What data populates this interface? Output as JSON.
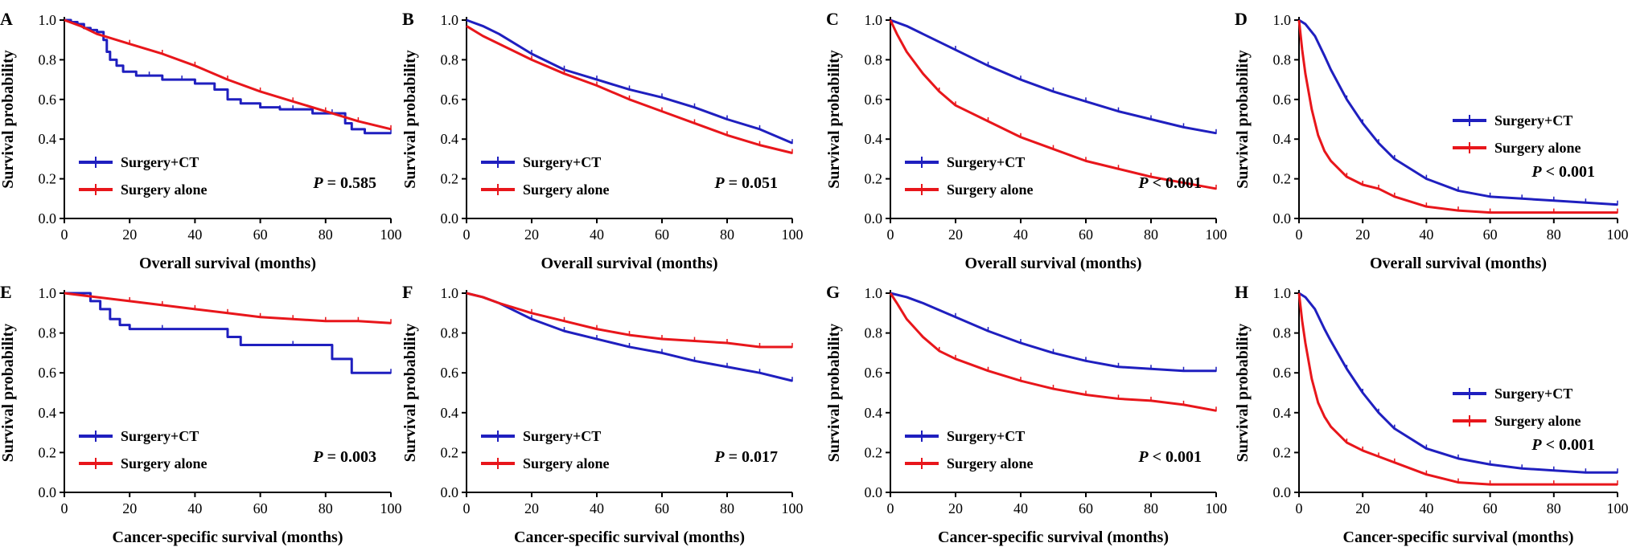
{
  "figure": {
    "y_axis_title": "Survival probability",
    "colors": {
      "surgery_ct": "#1f1fbf",
      "surgery_alone": "#e8161b",
      "axis": "#000000"
    }
  },
  "chart_data": [
    {
      "panel": "A",
      "type": "line",
      "title": "",
      "xlabel": "Overall survival (months)",
      "ylabel": "Survival probability",
      "xlim": [
        0,
        100
      ],
      "ylim": [
        0,
        1.0
      ],
      "xticks": [
        0,
        20,
        40,
        60,
        80,
        100
      ],
      "yticks": [
        0.0,
        0.2,
        0.4,
        0.6,
        0.8,
        1.0
      ],
      "legend": {
        "position": "bottom-left",
        "entries": [
          "Surgery+CT",
          "Surgery alone"
        ]
      },
      "p_value": {
        "prefix": "P",
        "text": " = 0.585",
        "position": "bottom-right"
      },
      "series": [
        {
          "name": "Surgery+CT",
          "step": true,
          "x": [
            0,
            2,
            4,
            6,
            8,
            10,
            12,
            13,
            14,
            16,
            18,
            22,
            26,
            30,
            36,
            40,
            46,
            50,
            54,
            60,
            66,
            70,
            76,
            82,
            86,
            88,
            92,
            100
          ],
          "y": [
            1.0,
            0.99,
            0.98,
            0.96,
            0.95,
            0.94,
            0.9,
            0.84,
            0.8,
            0.77,
            0.74,
            0.72,
            0.72,
            0.7,
            0.7,
            0.68,
            0.65,
            0.6,
            0.58,
            0.56,
            0.55,
            0.55,
            0.53,
            0.53,
            0.48,
            0.45,
            0.43,
            0.43
          ]
        },
        {
          "name": "Surgery alone",
          "step": false,
          "x": [
            0,
            5,
            10,
            20,
            30,
            40,
            50,
            60,
            70,
            80,
            90,
            100
          ],
          "y": [
            1.0,
            0.97,
            0.93,
            0.88,
            0.83,
            0.77,
            0.7,
            0.64,
            0.59,
            0.54,
            0.49,
            0.45
          ]
        }
      ]
    },
    {
      "panel": "B",
      "type": "line",
      "title": "",
      "xlabel": "Overall survival (months)",
      "ylabel": "Survival probability",
      "xlim": [
        0,
        100
      ],
      "ylim": [
        0,
        1.0
      ],
      "xticks": [
        0,
        20,
        40,
        60,
        80,
        100
      ],
      "yticks": [
        0.0,
        0.2,
        0.4,
        0.6,
        0.8,
        1.0
      ],
      "legend": {
        "position": "bottom-left",
        "entries": [
          "Surgery+CT",
          "Surgery alone"
        ]
      },
      "p_value": {
        "prefix": "P",
        "text": " = 0.051",
        "position": "bottom-right"
      },
      "series": [
        {
          "name": "Surgery+CT",
          "step": false,
          "x": [
            0,
            5,
            10,
            20,
            30,
            40,
            50,
            60,
            70,
            80,
            90,
            100
          ],
          "y": [
            1.0,
            0.97,
            0.93,
            0.83,
            0.75,
            0.7,
            0.65,
            0.61,
            0.56,
            0.5,
            0.45,
            0.38
          ]
        },
        {
          "name": "Surgery alone",
          "step": false,
          "x": [
            0,
            5,
            10,
            20,
            30,
            40,
            50,
            60,
            70,
            80,
            90,
            100
          ],
          "y": [
            0.97,
            0.92,
            0.88,
            0.8,
            0.73,
            0.67,
            0.6,
            0.54,
            0.48,
            0.42,
            0.37,
            0.33
          ]
        }
      ]
    },
    {
      "panel": "C",
      "type": "line",
      "title": "",
      "xlabel": "Overall survival (months)",
      "ylabel": "Survival probability",
      "xlim": [
        0,
        100
      ],
      "ylim": [
        0,
        1.0
      ],
      "xticks": [
        0,
        20,
        40,
        60,
        80,
        100
      ],
      "yticks": [
        0.0,
        0.2,
        0.4,
        0.6,
        0.8,
        1.0
      ],
      "legend": {
        "position": "bottom-left",
        "entries": [
          "Surgery+CT",
          "Surgery alone"
        ]
      },
      "p_value": {
        "prefix": "P",
        "text": " < 0.001",
        "position": "bottom-right"
      },
      "series": [
        {
          "name": "Surgery+CT",
          "step": false,
          "x": [
            0,
            5,
            10,
            20,
            30,
            40,
            50,
            60,
            70,
            80,
            90,
            100
          ],
          "y": [
            1.0,
            0.97,
            0.93,
            0.85,
            0.77,
            0.7,
            0.64,
            0.59,
            0.54,
            0.5,
            0.46,
            0.43
          ]
        },
        {
          "name": "Surgery alone",
          "step": false,
          "x": [
            0,
            2,
            5,
            10,
            15,
            20,
            30,
            40,
            50,
            60,
            70,
            80,
            90,
            100
          ],
          "y": [
            1.0,
            0.93,
            0.84,
            0.73,
            0.64,
            0.57,
            0.49,
            0.41,
            0.35,
            0.29,
            0.25,
            0.21,
            0.18,
            0.15
          ]
        }
      ]
    },
    {
      "panel": "D",
      "type": "line",
      "title": "",
      "xlabel": "Overall survival (months)",
      "ylabel": "Survival probability",
      "xlim": [
        0,
        100
      ],
      "ylim": [
        0,
        1.0
      ],
      "xticks": [
        0,
        20,
        40,
        60,
        80,
        100
      ],
      "yticks": [
        0.0,
        0.2,
        0.4,
        0.6,
        0.8,
        1.0
      ],
      "legend": {
        "position": "top-right",
        "entries": [
          "Surgery+CT",
          "Surgery alone"
        ]
      },
      "p_value": {
        "prefix": "P",
        "text": " < 0.001",
        "position": "right"
      },
      "series": [
        {
          "name": "Surgery+CT",
          "step": false,
          "x": [
            0,
            2,
            5,
            8,
            10,
            15,
            20,
            25,
            30,
            40,
            50,
            60,
            70,
            80,
            90,
            100
          ],
          "y": [
            1.0,
            0.98,
            0.92,
            0.82,
            0.75,
            0.6,
            0.48,
            0.38,
            0.3,
            0.2,
            0.14,
            0.11,
            0.1,
            0.09,
            0.08,
            0.07
          ]
        },
        {
          "name": "Surgery alone",
          "step": false,
          "x": [
            0,
            1,
            2,
            4,
            6,
            8,
            10,
            15,
            20,
            25,
            30,
            40,
            50,
            60,
            80,
            100
          ],
          "y": [
            1.0,
            0.85,
            0.73,
            0.55,
            0.42,
            0.34,
            0.29,
            0.21,
            0.17,
            0.15,
            0.11,
            0.06,
            0.04,
            0.03,
            0.03,
            0.03
          ]
        }
      ]
    },
    {
      "panel": "E",
      "type": "line",
      "title": "",
      "xlabel": "Cancer-specific survival (months)",
      "ylabel": "Survival probability",
      "xlim": [
        0,
        100
      ],
      "ylim": [
        0,
        1.0
      ],
      "xticks": [
        0,
        20,
        40,
        60,
        80,
        100
      ],
      "yticks": [
        0.0,
        0.2,
        0.4,
        0.6,
        0.8,
        1.0
      ],
      "legend": {
        "position": "bottom-left",
        "entries": [
          "Surgery+CT",
          "Surgery alone"
        ]
      },
      "p_value": {
        "prefix": "P",
        "text": " = 0.003",
        "position": "bottom-right"
      },
      "series": [
        {
          "name": "Surgery+CT",
          "step": true,
          "x": [
            0,
            8,
            11,
            14,
            17,
            20,
            30,
            50,
            54,
            70,
            82,
            88,
            100
          ],
          "y": [
            1.0,
            0.96,
            0.92,
            0.87,
            0.84,
            0.82,
            0.82,
            0.78,
            0.74,
            0.74,
            0.67,
            0.6,
            0.6
          ]
        },
        {
          "name": "Surgery alone",
          "step": false,
          "x": [
            0,
            10,
            20,
            30,
            40,
            50,
            60,
            70,
            80,
            90,
            100
          ],
          "y": [
            1.0,
            0.98,
            0.96,
            0.94,
            0.92,
            0.9,
            0.88,
            0.87,
            0.86,
            0.86,
            0.85
          ]
        }
      ]
    },
    {
      "panel": "F",
      "type": "line",
      "title": "",
      "xlabel": "Cancer-specific survival (months)",
      "ylabel": "Survival probability",
      "xlim": [
        0,
        100
      ],
      "ylim": [
        0,
        1.0
      ],
      "xticks": [
        0,
        20,
        40,
        60,
        80,
        100
      ],
      "yticks": [
        0.0,
        0.2,
        0.4,
        0.6,
        0.8,
        1.0
      ],
      "legend": {
        "position": "bottom-left",
        "entries": [
          "Surgery+CT",
          "Surgery alone"
        ]
      },
      "p_value": {
        "prefix": "P",
        "text": " = 0.017",
        "position": "bottom-right"
      },
      "series": [
        {
          "name": "Surgery+CT",
          "step": false,
          "x": [
            0,
            5,
            10,
            20,
            30,
            40,
            50,
            60,
            70,
            80,
            90,
            100
          ],
          "y": [
            1.0,
            0.98,
            0.95,
            0.87,
            0.81,
            0.77,
            0.73,
            0.7,
            0.66,
            0.63,
            0.6,
            0.56
          ]
        },
        {
          "name": "Surgery alone",
          "step": false,
          "x": [
            0,
            5,
            10,
            20,
            30,
            40,
            50,
            60,
            70,
            80,
            90,
            100
          ],
          "y": [
            1.0,
            0.98,
            0.95,
            0.9,
            0.86,
            0.82,
            0.79,
            0.77,
            0.76,
            0.75,
            0.73,
            0.73
          ]
        }
      ]
    },
    {
      "panel": "G",
      "type": "line",
      "title": "",
      "xlabel": "Cancer-specific survival (months)",
      "ylabel": "Survival probability",
      "xlim": [
        0,
        100
      ],
      "ylim": [
        0,
        1.0
      ],
      "xticks": [
        0,
        20,
        40,
        60,
        80,
        100
      ],
      "yticks": [
        0.0,
        0.2,
        0.4,
        0.6,
        0.8,
        1.0
      ],
      "legend": {
        "position": "bottom-left",
        "entries": [
          "Surgery+CT",
          "Surgery alone"
        ]
      },
      "p_value": {
        "prefix": "P",
        "text": " < 0.001",
        "position": "bottom-right"
      },
      "series": [
        {
          "name": "Surgery+CT",
          "step": false,
          "x": [
            0,
            5,
            10,
            20,
            30,
            40,
            50,
            60,
            70,
            80,
            90,
            100
          ],
          "y": [
            1.0,
            0.98,
            0.95,
            0.88,
            0.81,
            0.75,
            0.7,
            0.66,
            0.63,
            0.62,
            0.61,
            0.61
          ]
        },
        {
          "name": "Surgery alone",
          "step": false,
          "x": [
            0,
            2,
            5,
            10,
            15,
            20,
            30,
            40,
            50,
            60,
            70,
            80,
            90,
            100
          ],
          "y": [
            1.0,
            0.95,
            0.87,
            0.78,
            0.71,
            0.67,
            0.61,
            0.56,
            0.52,
            0.49,
            0.47,
            0.46,
            0.44,
            0.41
          ]
        }
      ]
    },
    {
      "panel": "H",
      "type": "line",
      "title": "",
      "xlabel": "Cancer-specific survival (months)",
      "ylabel": "Survival probability",
      "xlim": [
        0,
        100
      ],
      "ylim": [
        0,
        1.0
      ],
      "xticks": [
        0,
        20,
        40,
        60,
        80,
        100
      ],
      "yticks": [
        0.0,
        0.2,
        0.4,
        0.6,
        0.8,
        1.0
      ],
      "legend": {
        "position": "top-right",
        "entries": [
          "Surgery+CT",
          "Surgery alone"
        ]
      },
      "p_value": {
        "prefix": "P",
        "text": " < 0.001",
        "position": "right"
      },
      "series": [
        {
          "name": "Surgery+CT",
          "step": false,
          "x": [
            0,
            2,
            5,
            8,
            10,
            15,
            20,
            25,
            30,
            40,
            50,
            60,
            70,
            80,
            90,
            100
          ],
          "y": [
            1.0,
            0.98,
            0.92,
            0.82,
            0.76,
            0.62,
            0.5,
            0.4,
            0.32,
            0.22,
            0.17,
            0.14,
            0.12,
            0.11,
            0.1,
            0.1
          ]
        },
        {
          "name": "Surgery alone",
          "step": false,
          "x": [
            0,
            1,
            2,
            4,
            6,
            8,
            10,
            15,
            20,
            25,
            30,
            40,
            50,
            60,
            80,
            100
          ],
          "y": [
            1.0,
            0.86,
            0.75,
            0.57,
            0.45,
            0.38,
            0.33,
            0.25,
            0.21,
            0.18,
            0.15,
            0.09,
            0.05,
            0.04,
            0.04,
            0.04
          ]
        }
      ]
    }
  ]
}
